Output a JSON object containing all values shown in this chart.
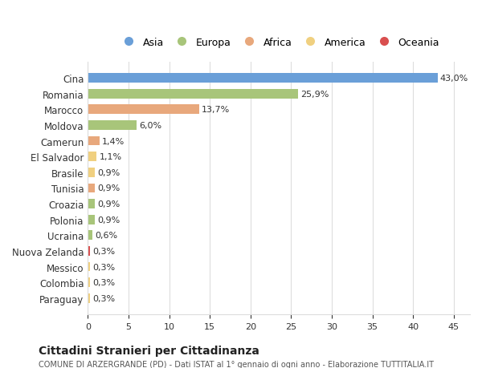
{
  "countries": [
    "Cina",
    "Romania",
    "Marocco",
    "Moldova",
    "Camerun",
    "El Salvador",
    "Brasile",
    "Tunisia",
    "Croazia",
    "Polonia",
    "Ucraina",
    "Nuova Zelanda",
    "Messico",
    "Colombia",
    "Paraguay"
  ],
  "values": [
    43.0,
    25.9,
    13.7,
    6.0,
    1.4,
    1.1,
    0.9,
    0.9,
    0.9,
    0.9,
    0.6,
    0.3,
    0.3,
    0.3,
    0.3
  ],
  "labels": [
    "43,0%",
    "25,9%",
    "13,7%",
    "6,0%",
    "1,4%",
    "1,1%",
    "0,9%",
    "0,9%",
    "0,9%",
    "0,9%",
    "0,6%",
    "0,3%",
    "0,3%",
    "0,3%",
    "0,3%"
  ],
  "colors": [
    "#6a9fd8",
    "#a8c57a",
    "#e8a87c",
    "#a8c57a",
    "#e8a87c",
    "#f0d080",
    "#f0d080",
    "#e8a87c",
    "#a8c57a",
    "#a8c57a",
    "#a8c57a",
    "#d94f4f",
    "#f0d080",
    "#f0d080",
    "#f0d080"
  ],
  "legend_labels": [
    "Asia",
    "Europa",
    "Africa",
    "America",
    "Oceania"
  ],
  "legend_colors": [
    "#6a9fd8",
    "#a8c57a",
    "#e8a87c",
    "#f0d080",
    "#d94f4f"
  ],
  "title": "Cittadini Stranieri per Cittadinanza",
  "subtitle": "COMUNE DI ARZERGRANDE (PD) - Dati ISTAT al 1° gennaio di ogni anno - Elaborazione TUTTITALIA.IT",
  "xlim": [
    0,
    47
  ],
  "xticks": [
    0,
    5,
    10,
    15,
    20,
    25,
    30,
    35,
    40,
    45
  ],
  "background_color": "#ffffff",
  "grid_color": "#dddddd"
}
